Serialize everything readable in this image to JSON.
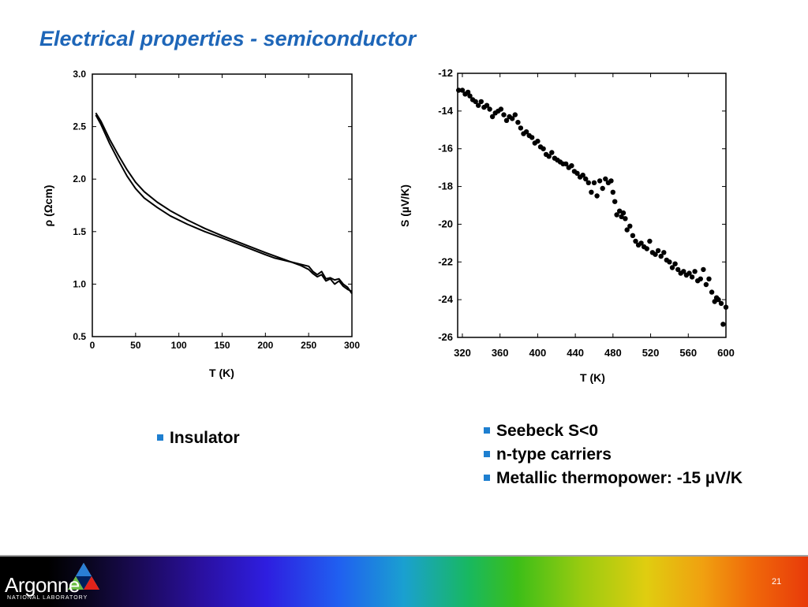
{
  "slide": {
    "title": "Electrical properties - semiconductor",
    "page_number": "21"
  },
  "bullets_left": [
    "Insulator"
  ],
  "bullets_right": [
    "Seebeck S<0",
    "n-type carriers",
    "Metallic thermopower: -15 µV/K"
  ],
  "footer": {
    "logo_text": "Argonne",
    "logo_subtext": "NATIONAL LABORATORY",
    "logo_colors": [
      "#2a7fd4",
      "#6cbd45",
      "#e2231a",
      "#00205b",
      "#b7d7f0"
    ],
    "bar_colors": [
      "#000000",
      "#2a10a0",
      "#2060f0",
      "#18b860",
      "#e0cd10",
      "#e83a0a"
    ]
  },
  "chart_data": [
    {
      "type": "line",
      "xlabel": "T (K)",
      "ylabel": "ρ (Ωcm)",
      "xlim": [
        0,
        300
      ],
      "ylim": [
        0.5,
        3.0
      ],
      "xticks": [
        0,
        50,
        100,
        150,
        200,
        250,
        300
      ],
      "yticks": [
        "0.5",
        "1.0",
        "1.5",
        "2.0",
        "2.5",
        "3.0"
      ],
      "grid": false,
      "series": [
        {
          "x": [
            4,
            10,
            20,
            30,
            40,
            50,
            60,
            75,
            90,
            110,
            130,
            150,
            175,
            200,
            210,
            220,
            230,
            240,
            250,
            255,
            260,
            265,
            270,
            275,
            280,
            285,
            290,
            295,
            300
          ],
          "y": [
            2.63,
            2.55,
            2.38,
            2.23,
            2.09,
            1.97,
            1.88,
            1.78,
            1.7,
            1.61,
            1.53,
            1.46,
            1.38,
            1.3,
            1.27,
            1.24,
            1.21,
            1.19,
            1.17,
            1.12,
            1.09,
            1.12,
            1.05,
            1.06,
            1.04,
            1.05,
            1.0,
            0.97,
            0.91
          ]
        },
        {
          "x": [
            4,
            10,
            20,
            30,
            40,
            50,
            60,
            75,
            90,
            110,
            130,
            150,
            175,
            200,
            210,
            220,
            230,
            240,
            250,
            255,
            260,
            265,
            270,
            275,
            280,
            285,
            290,
            295,
            300
          ],
          "y": [
            2.61,
            2.52,
            2.34,
            2.18,
            2.03,
            1.91,
            1.82,
            1.73,
            1.65,
            1.57,
            1.5,
            1.44,
            1.36,
            1.28,
            1.25,
            1.23,
            1.21,
            1.18,
            1.14,
            1.1,
            1.07,
            1.09,
            1.03,
            1.05,
            1.0,
            1.03,
            0.98,
            0.95,
            0.93
          ]
        }
      ]
    },
    {
      "type": "scatter",
      "xlabel": "T (K)",
      "ylabel": "S (µV/K)",
      "xlim": [
        315,
        600
      ],
      "ylim": [
        -26,
        -12
      ],
      "xticks": [
        320,
        360,
        400,
        440,
        480,
        520,
        560,
        600
      ],
      "yticks": [
        -26,
        -24,
        -22,
        -20,
        -18,
        -16,
        -14,
        -12
      ],
      "grid": false,
      "series": [
        {
          "x": [
            316,
            320,
            323,
            326,
            328,
            331,
            334,
            337,
            340,
            343,
            346,
            349,
            352,
            355,
            358,
            361,
            364,
            367,
            370,
            373,
            376,
            379,
            382,
            385,
            388,
            391,
            394,
            397,
            400,
            403,
            406,
            409,
            412,
            415,
            418,
            421,
            424,
            427,
            430,
            433,
            436,
            439,
            442,
            445,
            448,
            451,
            454,
            457,
            460,
            463,
            466,
            469,
            472,
            475,
            478,
            480,
            482,
            484,
            487,
            489,
            491,
            493,
            495,
            498,
            501,
            504,
            507,
            510,
            513,
            516,
            519,
            522,
            525,
            528,
            531,
            534,
            537,
            540,
            543,
            546,
            549,
            552,
            555,
            558,
            561,
            564,
            567,
            570,
            573,
            576,
            579,
            582,
            585,
            588,
            590,
            592,
            595,
            597,
            600
          ],
          "y": [
            -12.9,
            -12.9,
            -13.1,
            -13.0,
            -13.2,
            -13.4,
            -13.5,
            -13.7,
            -13.5,
            -13.8,
            -13.7,
            -13.9,
            -14.3,
            -14.1,
            -14.0,
            -13.9,
            -14.2,
            -14.5,
            -14.3,
            -14.4,
            -14.2,
            -14.6,
            -14.9,
            -15.2,
            -15.1,
            -15.3,
            -15.4,
            -15.7,
            -15.6,
            -15.9,
            -16.0,
            -16.3,
            -16.4,
            -16.2,
            -16.5,
            -16.6,
            -16.7,
            -16.8,
            -16.8,
            -17.0,
            -16.9,
            -17.2,
            -17.3,
            -17.5,
            -17.4,
            -17.6,
            -17.8,
            -18.3,
            -17.8,
            -18.5,
            -17.7,
            -18.1,
            -17.6,
            -17.8,
            -17.7,
            -18.3,
            -18.8,
            -19.5,
            -19.3,
            -19.6,
            -19.4,
            -19.7,
            -20.3,
            -20.1,
            -20.6,
            -20.9,
            -21.1,
            -21.0,
            -21.2,
            -21.3,
            -20.9,
            -21.5,
            -21.6,
            -21.4,
            -21.7,
            -21.5,
            -21.9,
            -22.0,
            -22.3,
            -22.1,
            -22.4,
            -22.6,
            -22.5,
            -22.7,
            -22.6,
            -22.8,
            -22.5,
            -23.0,
            -22.9,
            -22.4,
            -23.2,
            -22.9,
            -23.6,
            -24.1,
            -23.9,
            -24.0,
            -24.2,
            -25.3,
            -24.4
          ]
        }
      ]
    }
  ]
}
